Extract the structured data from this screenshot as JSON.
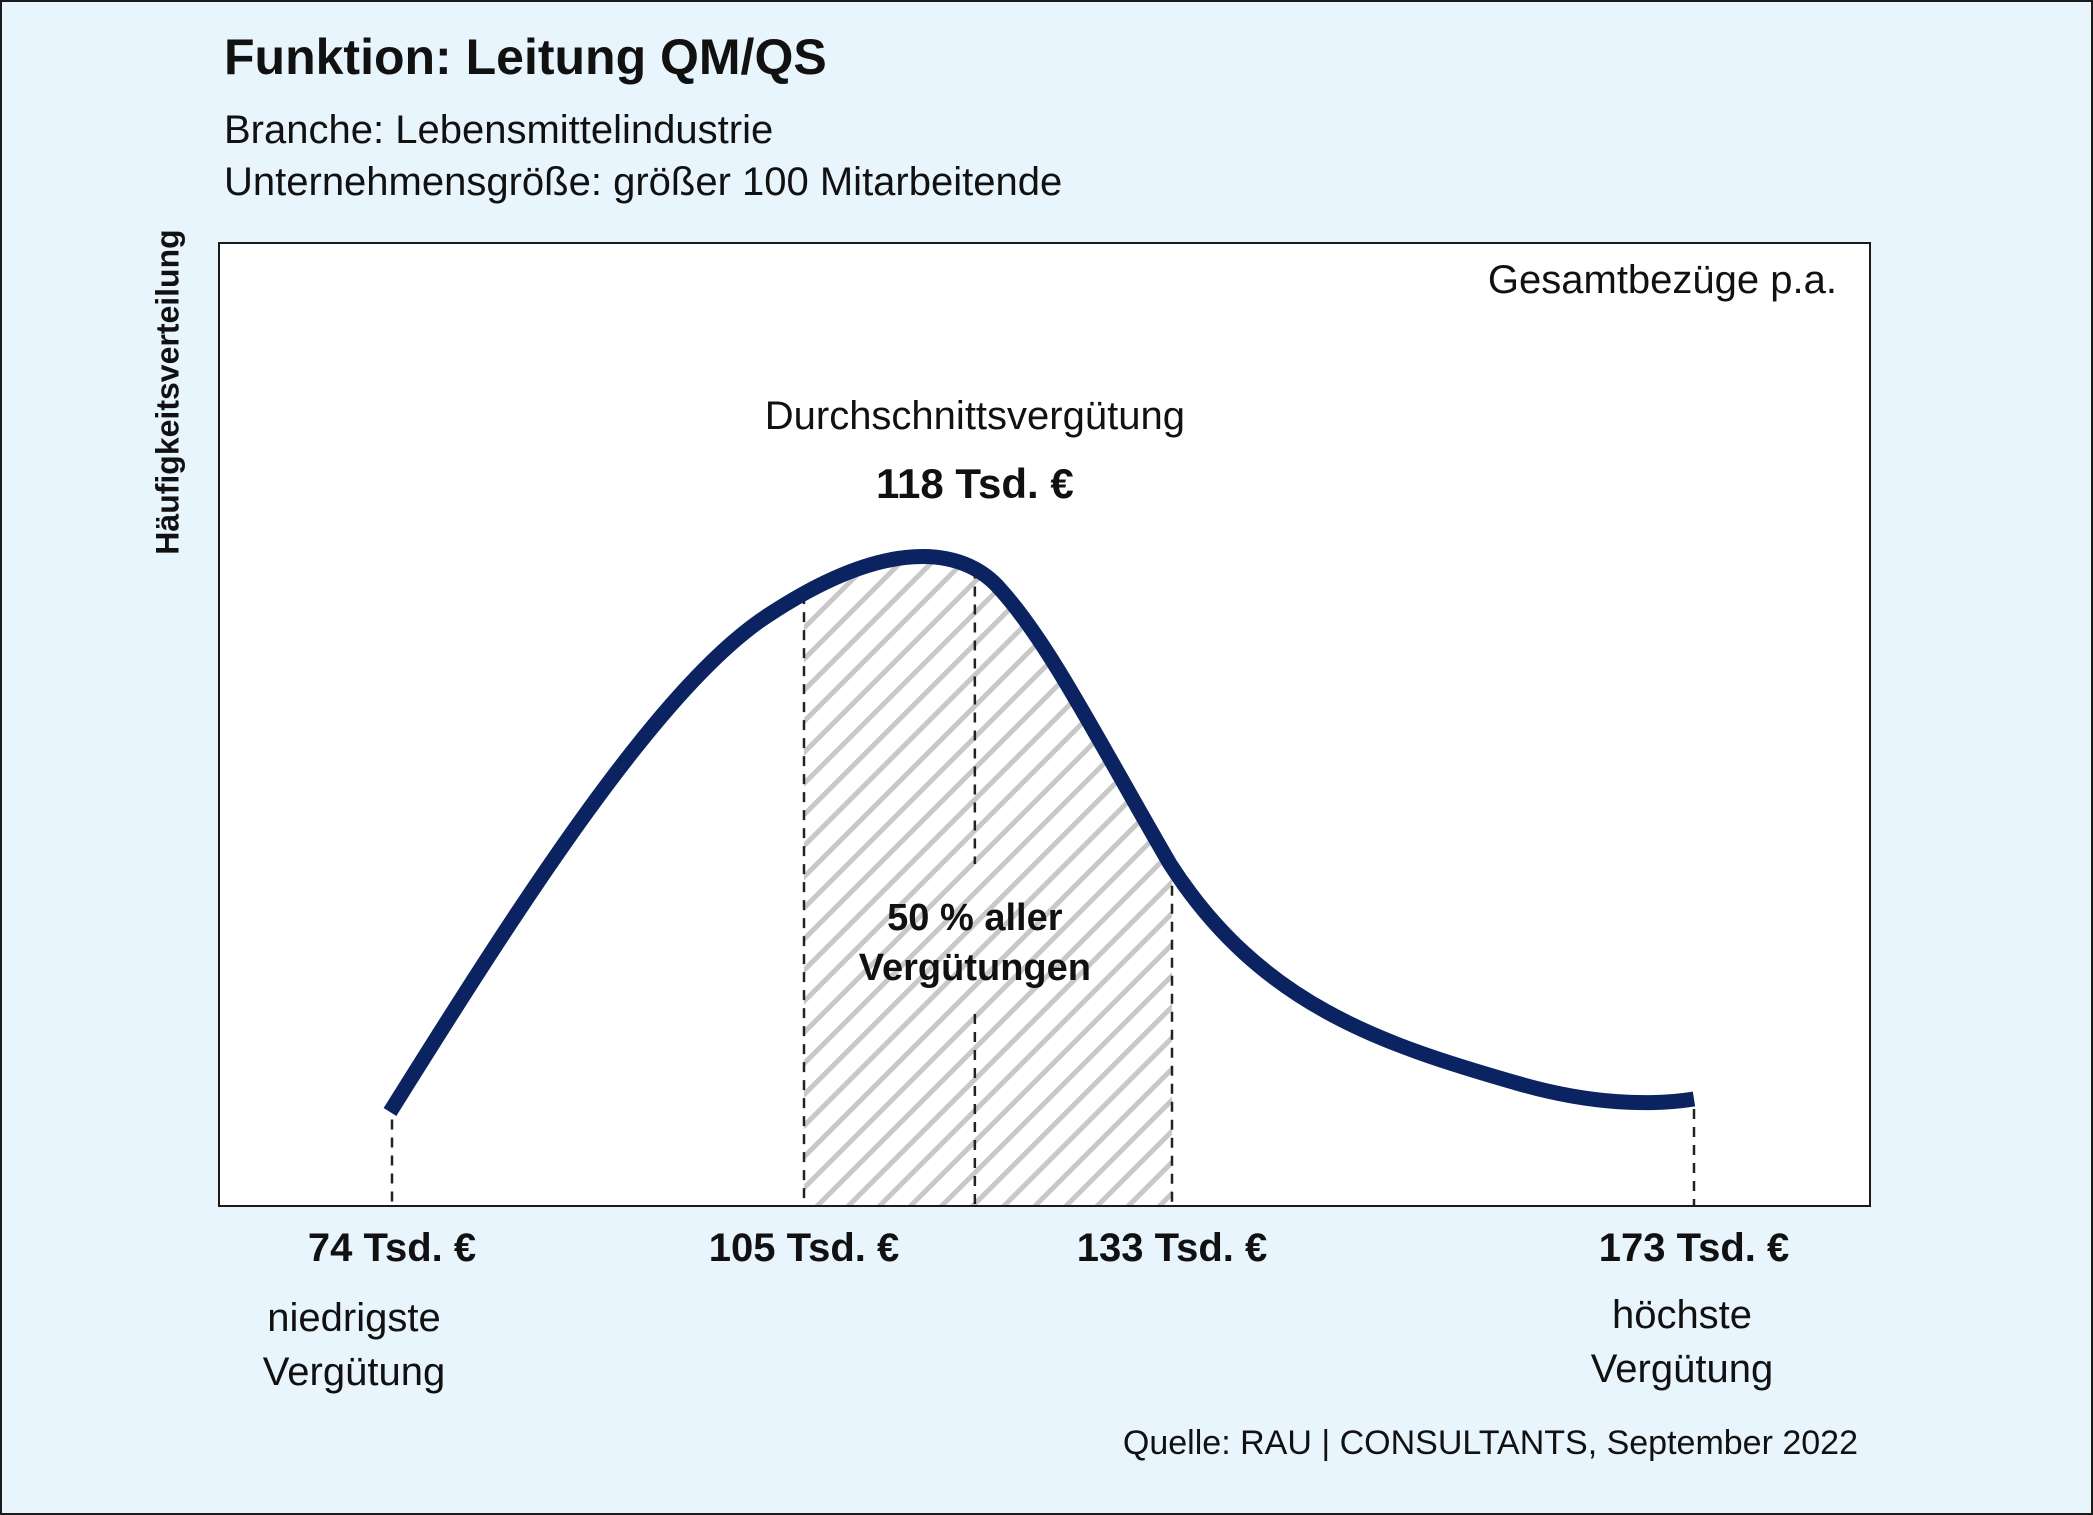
{
  "title": "Funktion: Leitung QM/QS",
  "subtitle_line1": "Branche: Lebensmittelindustrie",
  "subtitle_line2": "Unternehmensgröße: größer 100 Mitarbeitende",
  "source": "Quelle: RAU | CONSULTANTS, September 2022",
  "chart_data": {
    "type": "area",
    "title": "Funktion: Leitung QM/QS",
    "ylabel": "Häufigkeitsverteilung",
    "corner_label": "Gesamtbezüge p.a.",
    "unit": "Tsd. €",
    "min": {
      "value": 74,
      "tick_label": "74 Tsd. €",
      "label_line1": "niedrigste",
      "label_line2": "Vergütung"
    },
    "q1": {
      "value": 105,
      "tick_label": "105 Tsd. €"
    },
    "q3": {
      "value": 133,
      "tick_label": "133 Tsd. €"
    },
    "max": {
      "value": 173,
      "tick_label": "173 Tsd. €",
      "label_line1": "höchste",
      "label_line2": "Vergütung"
    },
    "average": {
      "value": 118,
      "label": "Durchschnittsvergütung",
      "value_label": "118 Tsd. €"
    },
    "interquartile_label_line1": "50 % aller",
    "interquartile_label_line2": "Vergütungen",
    "colors": {
      "curve": "#0b2461",
      "hatch": "#c8c8c8",
      "background": "#e8f5fd",
      "plot": "#ffffff"
    },
    "grid": false,
    "legend": "none"
  }
}
